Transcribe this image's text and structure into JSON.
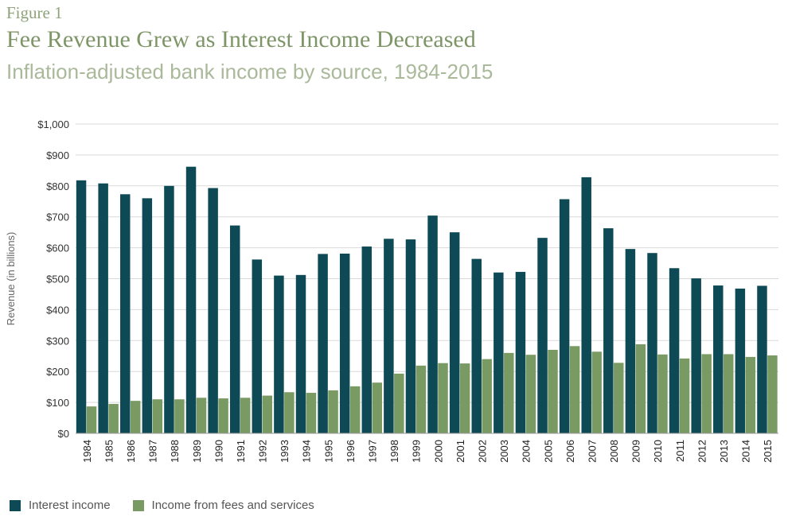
{
  "figure_label": "Figure 1",
  "chart_data": {
    "type": "bar",
    "title": "Fee Revenue Grew as Interest Income Decreased",
    "subtitle": "Inflation-adjusted bank income by source, 1984-2015",
    "xlabel": "",
    "ylabel": "Revenue (in billions)",
    "ylim": [
      0,
      1000
    ],
    "yticks": [
      "$0",
      "$100",
      "$200",
      "$300",
      "$400",
      "$500",
      "$600",
      "$700",
      "$800",
      "$900",
      "$1,000"
    ],
    "ytick_values": [
      0,
      100,
      200,
      300,
      400,
      500,
      600,
      700,
      800,
      900,
      1000
    ],
    "grid": true,
    "legend_position": "bottom-left",
    "categories": [
      "1984",
      "1985",
      "1986",
      "1987",
      "1988",
      "1989",
      "1990",
      "1991",
      "1992",
      "1993",
      "1994",
      "1995",
      "1996",
      "1997",
      "1998",
      "1999",
      "2000",
      "2001",
      "2002",
      "2003",
      "2004",
      "2005",
      "2006",
      "2007",
      "2008",
      "2009",
      "2010",
      "2011",
      "2012",
      "2013",
      "2014",
      "2015"
    ],
    "series": [
      {
        "name": "Interest income",
        "color": "#0e4a55",
        "values": [
          818,
          808,
          773,
          760,
          800,
          862,
          793,
          672,
          562,
          510,
          512,
          580,
          581,
          604,
          629,
          627,
          704,
          650,
          564,
          520,
          522,
          632,
          757,
          828,
          663,
          596,
          583,
          534,
          501,
          478,
          468,
          477
        ]
      },
      {
        "name": "Income from fees and services",
        "color": "#7a9a63",
        "values": [
          87,
          95,
          105,
          110,
          110,
          115,
          113,
          115,
          122,
          133,
          131,
          139,
          152,
          164,
          193,
          219,
          227,
          226,
          240,
          260,
          254,
          270,
          282,
          264,
          228,
          288,
          255,
          242,
          256,
          256,
          247,
          252
        ]
      }
    ]
  }
}
